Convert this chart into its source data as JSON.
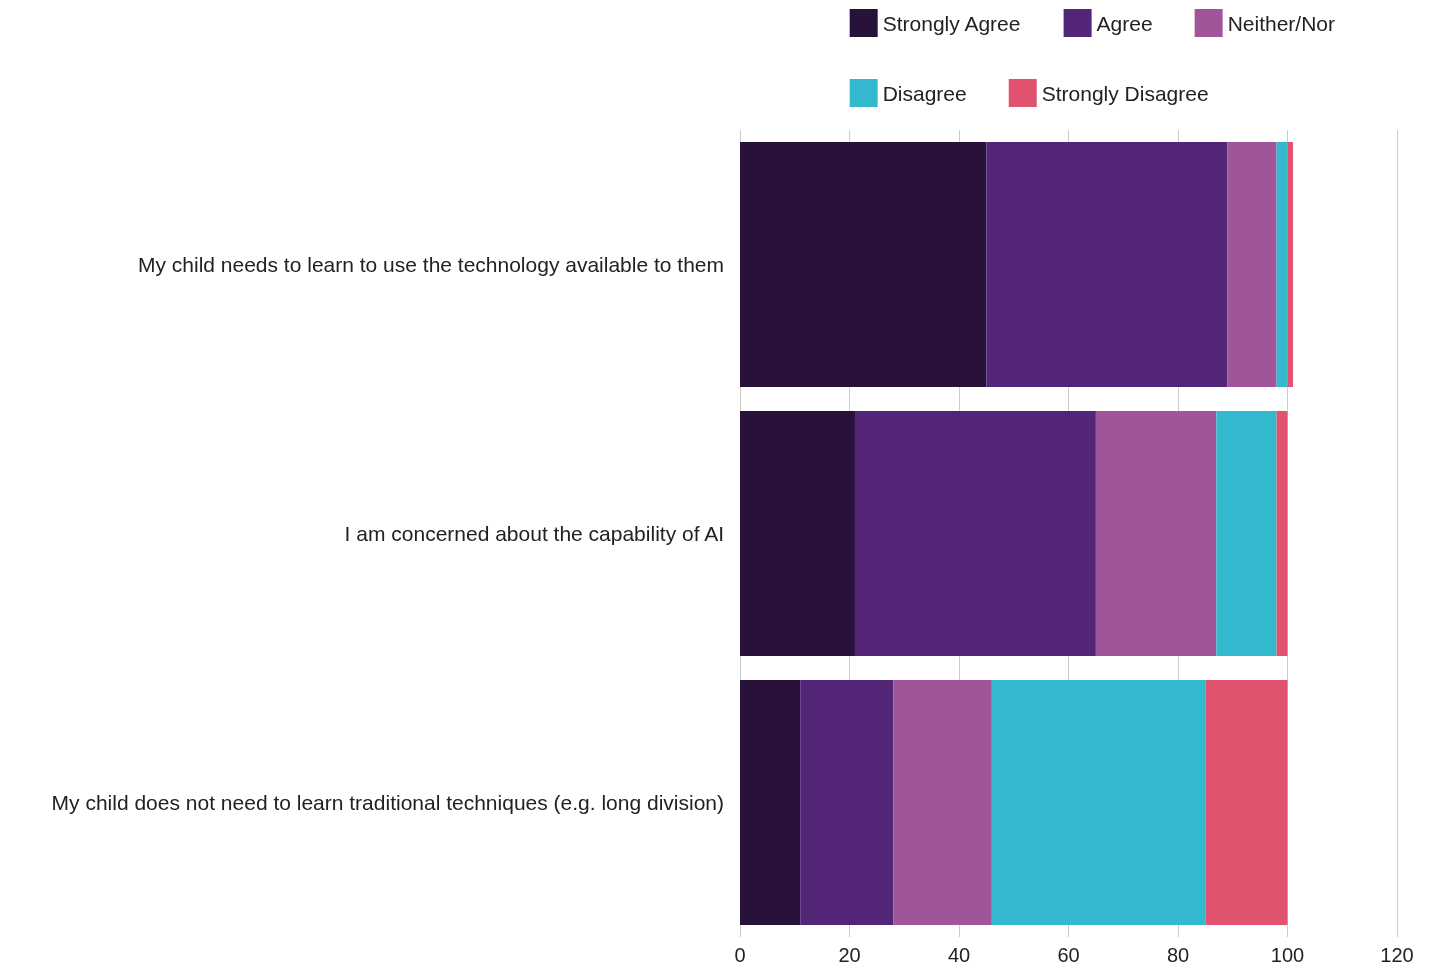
{
  "chart_data": {
    "type": "bar",
    "orientation": "horizontal",
    "stacked": true,
    "categories": [
      "My child needs to learn to use the technology available to them",
      "I am concerned about the capability of AI",
      "My child does not need to learn traditional techniques (e.g. long division)"
    ],
    "series": [
      {
        "name": "Strongly Agree",
        "color": "#28123a",
        "values": [
          45,
          21,
          11
        ]
      },
      {
        "name": "Agree",
        "color": "#522577",
        "values": [
          44,
          44,
          17
        ]
      },
      {
        "name": "Neither/Nor",
        "color": "#a05499",
        "values": [
          9,
          22,
          18
        ]
      },
      {
        "name": "Disagree",
        "color": "#33b9cd",
        "values": [
          2,
          11,
          39
        ]
      },
      {
        "name": "Strongly Disagree",
        "color": "#e0526d",
        "values": [
          1,
          2,
          15
        ]
      }
    ],
    "xlim": [
      0,
      120
    ],
    "xticks": [
      0,
      20,
      40,
      60,
      80,
      100,
      120
    ],
    "grid": "x",
    "legend": "top right"
  }
}
